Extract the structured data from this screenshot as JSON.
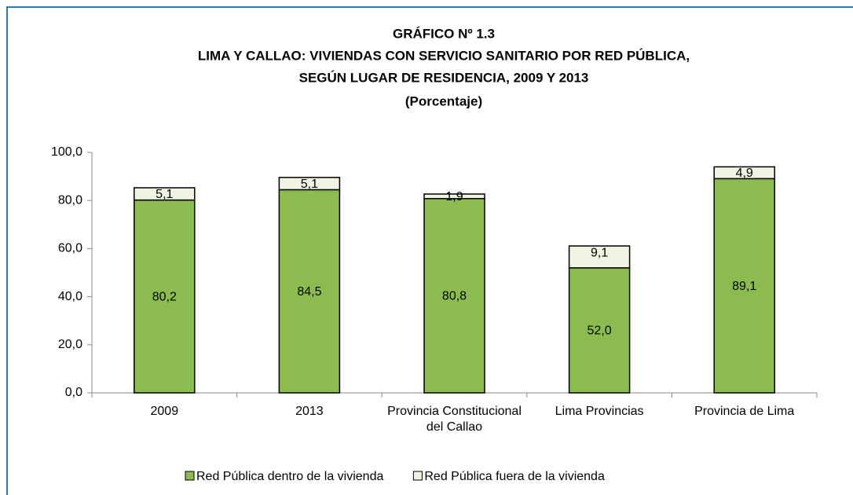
{
  "chart_data": {
    "type": "stacked_bar",
    "title": "GRÁFICO Nº 1.3",
    "subtitle": [
      "LIMA Y CALLAO: VIVIENDAS CON SERVICIO SANITARIO POR RED PÚBLICA,",
      "SEGÚN LUGAR DE RESIDENCIA,  2009 Y 2013",
      "(Porcentaje)"
    ],
    "categories": [
      "2009",
      "2013",
      "Provincia Constitucional del Callao",
      "Lima Provincias",
      "Provincia de Lima"
    ],
    "series": [
      {
        "name": "Red Pública dentro de la vivienda",
        "color": "#8cbc50",
        "values": [
          80.2,
          84.5,
          80.8,
          52.0,
          89.1
        ],
        "value_labels": [
          "80,2",
          "84,5",
          "80,8",
          "52,0",
          "89,1"
        ]
      },
      {
        "name": "Red Pública fuera de la vivienda",
        "color": "#eef3e2",
        "values": [
          5.1,
          5.1,
          1.9,
          9.1,
          4.9
        ],
        "value_labels": [
          "5,1",
          "5,1",
          "1,9",
          "9,1",
          "4,9"
        ]
      }
    ],
    "ylim": [
      0,
      100
    ],
    "yticks": [
      {
        "value": 0,
        "label": "0,0"
      },
      {
        "value": 20,
        "label": "20,0"
      },
      {
        "value": 40,
        "label": "40,0"
      },
      {
        "value": 60,
        "label": "60,0"
      },
      {
        "value": 80,
        "label": "80,0"
      },
      {
        "value": 100,
        "label": "100,0"
      }
    ],
    "grid": false,
    "legend": "bottom"
  }
}
